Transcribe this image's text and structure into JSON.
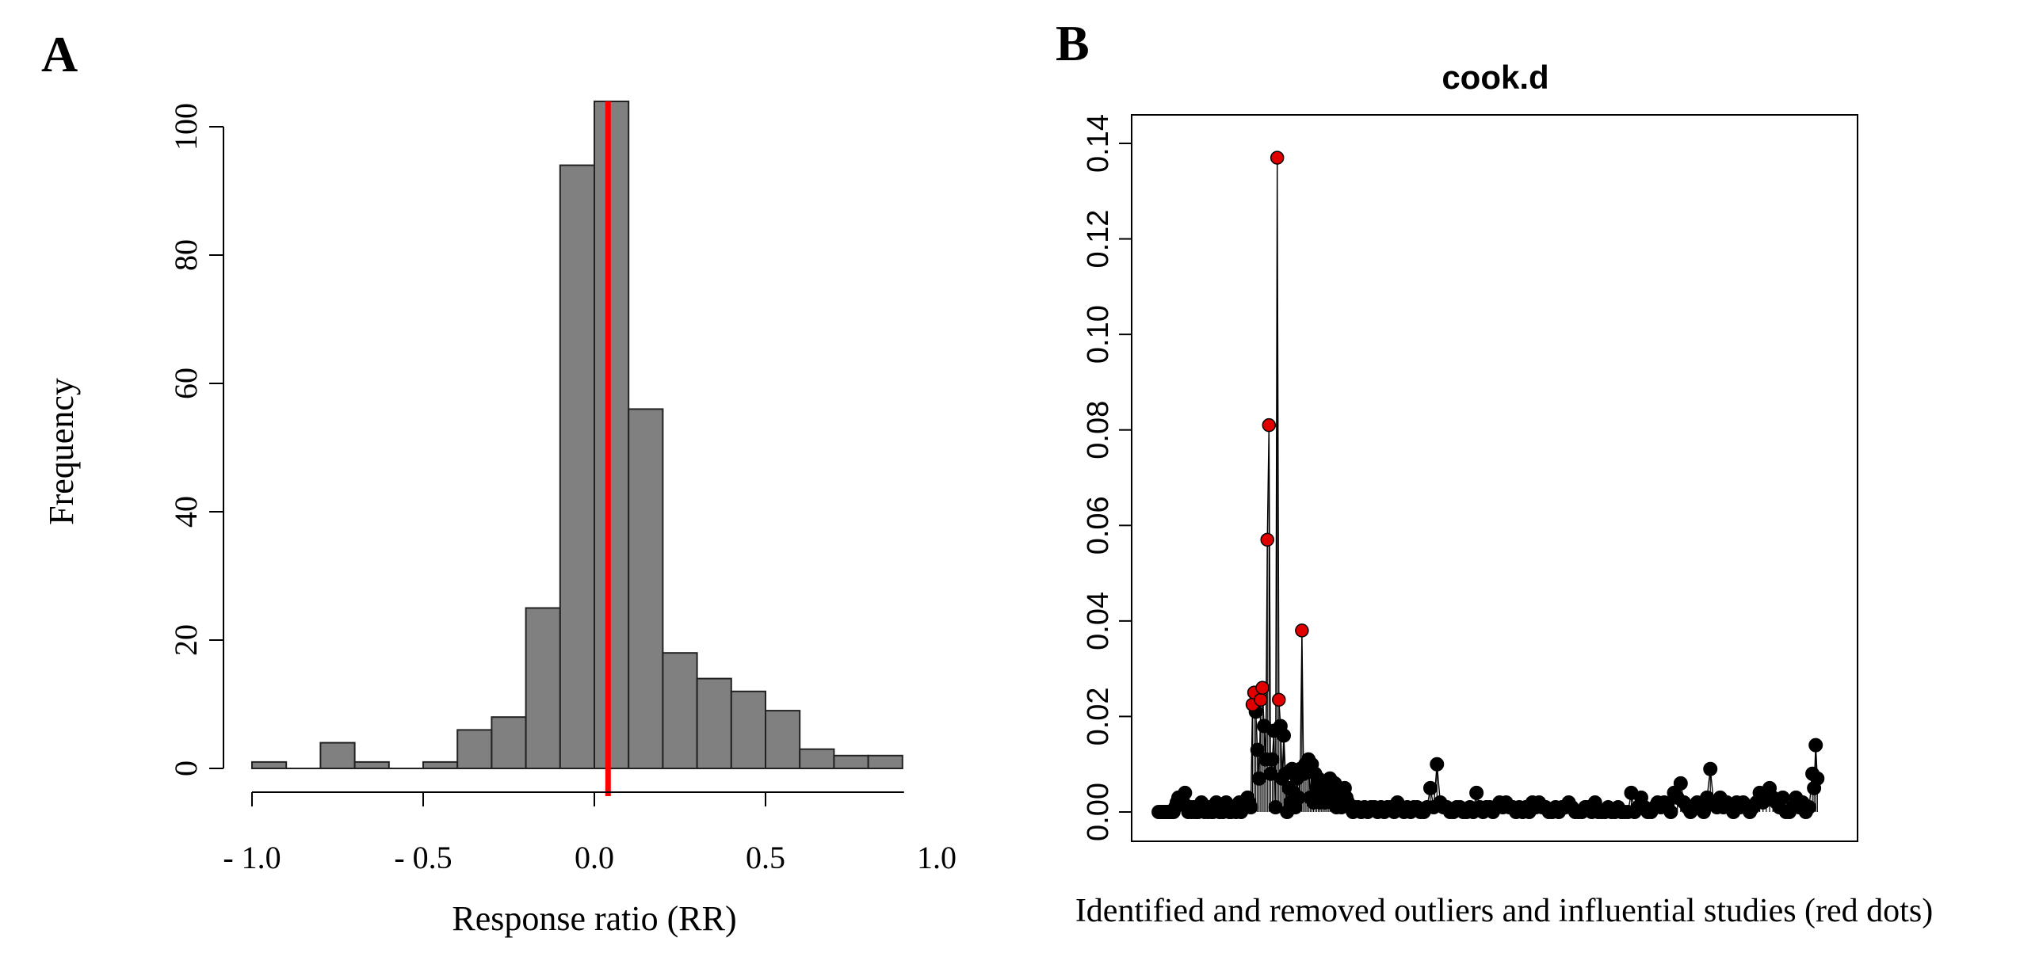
{
  "panels": {
    "a_label": "A",
    "b_label": "B"
  },
  "chart_data": [
    {
      "type": "bar",
      "subtype": "histogram",
      "panel": "A",
      "title": "",
      "xlabel": "Response ratio (RR)",
      "ylabel": "Frequency",
      "xlim": [
        -1.0,
        0.9
      ],
      "ylim": [
        0,
        100
      ],
      "bin_width": 0.1,
      "bin_starts": [
        -1.0,
        -0.9,
        -0.8,
        -0.7,
        -0.6,
        -0.5,
        -0.4,
        -0.3,
        -0.2,
        -0.1,
        0.0,
        0.1,
        0.2,
        0.3,
        0.4,
        0.5,
        0.6,
        0.7,
        0.8
      ],
      "values": [
        1,
        0,
        4,
        1,
        0,
        1,
        6,
        8,
        25,
        94,
        108,
        56,
        18,
        14,
        12,
        9,
        3,
        2,
        2
      ],
      "x_ticks": [
        -1.0,
        -0.5,
        0.0,
        0.5,
        1.0
      ],
      "x_tick_labels": [
        "- 1.0",
        "- 0.5",
        "0.0",
        "0.5",
        "1.0"
      ],
      "y_ticks": [
        0,
        20,
        40,
        60,
        80,
        100
      ],
      "y_tick_labels": [
        "0",
        "20",
        "40",
        "60",
        "80",
        "100"
      ],
      "reference_line": {
        "x": 0.04,
        "color": "#ff0000"
      },
      "bar_color": "#808080"
    },
    {
      "type": "scatter",
      "subtype": "index_plot",
      "panel": "B",
      "title": "cook.d",
      "xlabel": "Identified and removed outliers and influential studies (red dots)",
      "ylabel": "",
      "xlim": [
        0,
        410
      ],
      "ylim": [
        0,
        0.14
      ],
      "y_ticks": [
        0.0,
        0.02,
        0.04,
        0.06,
        0.08,
        0.1,
        0.12,
        0.14
      ],
      "y_tick_labels": [
        "0.00",
        "0.02",
        "0.04",
        "0.06",
        "0.08",
        "0.10",
        "0.12",
        "0.14"
      ],
      "series": [
        {
          "name": "outliers_influential",
          "color": "#e00000",
          "x": [
            58,
            59,
            63,
            64,
            67,
            68,
            73,
            74,
            88
          ],
          "y": [
            0.0225,
            0.025,
            0.0235,
            0.026,
            0.057,
            0.081,
            0.137,
            0.0235,
            0.038
          ]
        },
        {
          "name": "studies",
          "color": "#000000",
          "x": [
            1,
            2,
            3,
            4,
            5,
            6,
            7,
            8,
            9,
            10,
            11,
            12,
            13,
            14,
            15,
            16,
            17,
            18,
            19,
            20,
            21,
            22,
            23,
            24,
            25,
            26,
            27,
            28,
            29,
            30,
            31,
            32,
            33,
            34,
            35,
            36,
            37,
            38,
            39,
            40,
            41,
            42,
            43,
            44,
            45,
            46,
            47,
            48,
            49,
            50,
            51,
            52,
            53,
            54,
            55,
            56,
            57,
            60,
            61,
            62,
            65,
            66,
            69,
            70,
            71,
            72,
            75,
            76,
            77,
            78,
            79,
            80,
            81,
            82,
            83,
            84,
            85,
            86,
            87,
            89,
            90,
            91,
            92,
            93,
            94,
            95,
            96,
            97,
            98,
            99,
            100,
            101,
            102,
            103,
            104,
            105,
            106,
            107,
            108,
            109,
            110,
            111,
            112,
            113,
            114,
            115,
            116,
            117,
            118,
            119,
            120,
            122,
            124,
            126,
            128,
            130,
            132,
            134,
            136,
            138,
            140,
            142,
            144,
            146,
            148,
            150,
            152,
            154,
            156,
            158,
            160,
            162,
            164,
            166,
            168,
            170,
            172,
            174,
            176,
            178,
            180,
            182,
            184,
            186,
            188,
            190,
            192,
            194,
            196,
            198,
            200,
            202,
            204,
            206,
            208,
            210,
            212,
            214,
            216,
            218,
            220,
            222,
            224,
            226,
            228,
            230,
            232,
            234,
            236,
            238,
            240,
            242,
            244,
            246,
            248,
            250,
            252,
            254,
            256,
            258,
            260,
            262,
            264,
            266,
            268,
            270,
            272,
            274,
            276,
            278,
            280,
            282,
            284,
            286,
            288,
            290,
            292,
            294,
            296,
            298,
            300,
            302,
            304,
            306,
            308,
            310,
            312,
            314,
            316,
            318,
            320,
            322,
            324,
            326,
            328,
            330,
            332,
            334,
            336,
            338,
            340,
            342,
            344,
            346,
            348,
            350,
            352,
            354,
            356,
            358,
            360,
            362,
            364,
            366,
            368,
            370,
            372,
            374,
            376,
            378,
            380,
            382,
            384,
            386,
            388,
            390,
            392,
            394,
            396,
            398,
            399,
            400,
            401
          ],
          "y": [
            0.0,
            0.0,
            0.0,
            0.0,
            0.0,
            0.0,
            0.0,
            0.0,
            0.0,
            0.0,
            0.001,
            0.002,
            0.003,
            0.002,
            0.003,
            0.002,
            0.004,
            0.001,
            0.0,
            0.001,
            0.0,
            0.001,
            0.0,
            0.0,
            0.0,
            0.001,
            0.002,
            0.001,
            0.0,
            0.001,
            0.0,
            0.001,
            0.0,
            0.0,
            0.001,
            0.002,
            0.001,
            0.0,
            0.001,
            0.0,
            0.001,
            0.002,
            0.001,
            0.0,
            0.0,
            0.001,
            0.001,
            0.0,
            0.001,
            0.002,
            0.0,
            0.001,
            0.002,
            0.001,
            0.003,
            0.002,
            0.001,
            0.021,
            0.013,
            0.007,
            0.018,
            0.011,
            0.008,
            0.011,
            0.017,
            0.001,
            0.018,
            0.007,
            0.016,
            0.008,
            0.0,
            0.005,
            0.002,
            0.009,
            0.004,
            0.001,
            0.007,
            0.003,
            0.009,
            0.008,
            0.01,
            0.009,
            0.011,
            0.003,
            0.01,
            0.002,
            0.008,
            0.005,
            0.007,
            0.002,
            0.006,
            0.003,
            0.002,
            0.004,
            0.003,
            0.007,
            0.002,
            0.004,
            0.006,
            0.001,
            0.002,
            0.003,
            0.001,
            0.002,
            0.005,
            0.003,
            0.002,
            0.001,
            0.001,
            0.0,
            0.001,
            0.001,
            0.0,
            0.001,
            0.0,
            0.001,
            0.001,
            0.0,
            0.001,
            0.0,
            0.001,
            0.001,
            0.0,
            0.002,
            0.001,
            0.0,
            0.001,
            0.0,
            0.001,
            0.001,
            0.0,
            0.0,
            0.001,
            0.005,
            0.001,
            0.01,
            0.002,
            0.001,
            0.001,
            0.0,
            0.0,
            0.001,
            0.001,
            0.0,
            0.0,
            0.001,
            0.0,
            0.004,
            0.001,
            0.0,
            0.001,
            0.001,
            0.0,
            0.001,
            0.002,
            0.001,
            0.002,
            0.001,
            0.001,
            0.0,
            0.001,
            0.0,
            0.001,
            0.0,
            0.002,
            0.001,
            0.002,
            0.001,
            0.001,
            0.0,
            0.0,
            0.001,
            0.0,
            0.001,
            0.001,
            0.002,
            0.001,
            0.0,
            0.0,
            0.0,
            0.001,
            0.001,
            0.0,
            0.002,
            0.0,
            0.0,
            0.0,
            0.001,
            0.0,
            0.0,
            0.001,
            0.0,
            0.0,
            0.0,
            0.004,
            0.0,
            0.001,
            0.003,
            0.001,
            0.0,
            0.0,
            0.001,
            0.002,
            0.001,
            0.002,
            0.001,
            0.0,
            0.004,
            0.003,
            0.006,
            0.002,
            0.001,
            0.0,
            0.001,
            0.002,
            0.001,
            0.0,
            0.003,
            0.009,
            0.002,
            0.001,
            0.003,
            0.001,
            0.002,
            0.001,
            0.0,
            0.002,
            0.001,
            0.002,
            0.001,
            0.0,
            0.001,
            0.002,
            0.004,
            0.002,
            0.003,
            0.005,
            0.003,
            0.002,
            0.001,
            0.003,
            0.0,
            0.0,
            0.001,
            0.003,
            0.001,
            0.002,
            0.0,
            0.001,
            0.008,
            0.005,
            0.014,
            0.007
          ]
        }
      ]
    }
  ]
}
